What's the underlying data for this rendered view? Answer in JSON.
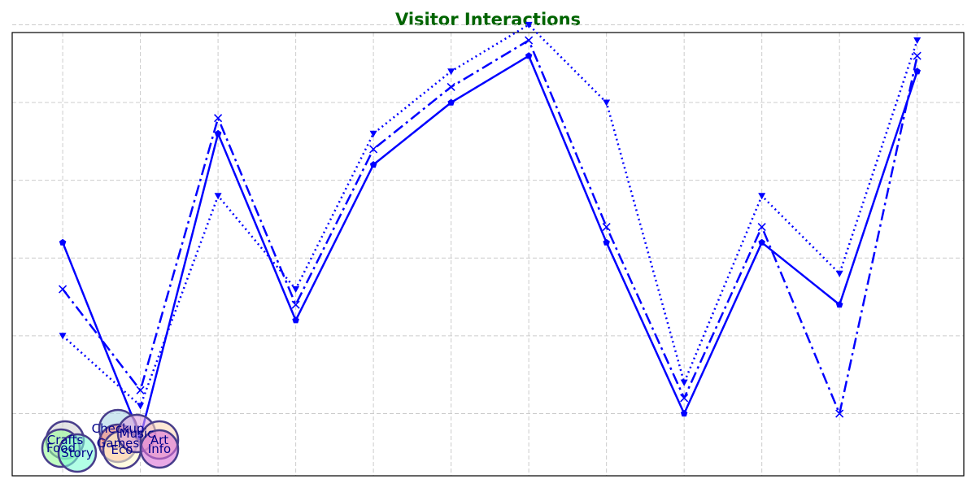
{
  "chart_data": {
    "type": "line",
    "title": "Visitor Interactions",
    "title_color": "#006400",
    "xlabel": "",
    "ylabel": "",
    "x": [
      1,
      2,
      3,
      4,
      5,
      6,
      7,
      8,
      9,
      10,
      11,
      12
    ],
    "xlim": [
      0.35,
      12.6
    ],
    "ylim": [
      0.2,
      5.9
    ],
    "grid": true,
    "series": [
      {
        "values": [
          3.2,
          0.7,
          4.6,
          2.2,
          4.2,
          5.0,
          5.6,
          3.2,
          1.0,
          3.2,
          2.4,
          5.4
        ],
        "color": "#0000ff",
        "linestyle": "solid",
        "marker": "pentagon"
      },
      {
        "values": [
          2.6,
          1.3,
          4.8,
          2.4,
          4.4,
          5.2,
          5.8,
          3.4,
          1.2,
          3.4,
          1.0,
          5.6
        ],
        "color": "#0000ff",
        "linestyle": "dashdot",
        "marker": "x"
      },
      {
        "values": [
          2.0,
          1.1,
          3.8,
          2.6,
          4.6,
          5.4,
          6.0,
          5.0,
          1.4,
          3.8,
          2.8,
          5.8
        ],
        "color": "#0000ff",
        "linestyle": "dotted",
        "marker": "triangle-down"
      }
    ],
    "bubbles": [
      {
        "label": "Crafts",
        "color": "#d3d3d3"
      },
      {
        "label": "Food",
        "color": "#98fb98"
      },
      {
        "label": "Story",
        "color": "#7fffd4"
      },
      {
        "label": "Checkup",
        "color": "#add8e6"
      },
      {
        "label": "Games",
        "color": "#fa8072"
      },
      {
        "label": "Eco",
        "color": "#fffacd"
      },
      {
        "label": "Music",
        "color": "#dda0dd"
      },
      {
        "label": "Art",
        "color": "#ffdab9"
      },
      {
        "label": "Info",
        "color": "#da70d6"
      }
    ],
    "bubble_edge_color": "#483d8b",
    "bubble_label_color": "#00008b"
  }
}
